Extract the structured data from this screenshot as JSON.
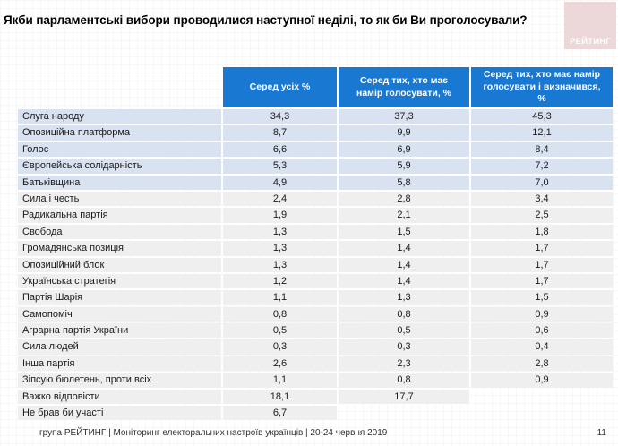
{
  "page": {
    "title": "Якби парламентські вибори проводилися наступної неділі, то як би Ви проголосували?",
    "logo_text": "РЕЙТИНГ",
    "footer": "група РЕЙТИНГ | Моніторинг електоральних настроїв українців | 20-24 червня 2019",
    "page_number": "11"
  },
  "colors": {
    "header_blue": "#1878d2",
    "row_blue": "#d8e2f1",
    "row_gray": "#efefef",
    "logo_pink": "#ecd8d8"
  },
  "chart_data": {
    "type": "table",
    "title": "Якби парламентські вибори проводилися наступної неділі, то як би Ви проголосували?",
    "columns": [
      "Серед усіх %",
      "Серед тих, хто має намір голосувати, %",
      "Серед тих, хто має намір голосувати і визначився, %"
    ],
    "rows": [
      {
        "label": "Слуга народу",
        "values": [
          "34,3",
          "37,3",
          "45,3"
        ],
        "highlight": true
      },
      {
        "label": "Опозиційна платформа",
        "values": [
          "8,7",
          "9,9",
          "12,1"
        ],
        "highlight": true
      },
      {
        "label": "Голос",
        "values": [
          "6,6",
          "6,9",
          "8,4"
        ],
        "highlight": true
      },
      {
        "label": "Європейська солідарність",
        "values": [
          "5,3",
          "5,9",
          "7,2"
        ],
        "highlight": true
      },
      {
        "label": "Батьківщина",
        "values": [
          "4,9",
          "5,8",
          "7,0"
        ],
        "highlight": true
      },
      {
        "label": "Сила і честь",
        "values": [
          "2,4",
          "2,8",
          "3,4"
        ],
        "highlight": false
      },
      {
        "label": "Радикальна партія",
        "values": [
          "1,9",
          "2,1",
          "2,5"
        ],
        "highlight": false
      },
      {
        "label": "Свобода",
        "values": [
          "1,3",
          "1,5",
          "1,8"
        ],
        "highlight": false
      },
      {
        "label": "Громадянська позиція",
        "values": [
          "1,3",
          "1,4",
          "1,7"
        ],
        "highlight": false
      },
      {
        "label": "Опозиційний блок",
        "values": [
          "1,3",
          "1,4",
          "1,7"
        ],
        "highlight": false
      },
      {
        "label": "Українська стратегія",
        "values": [
          "1,2",
          "1,4",
          "1,7"
        ],
        "highlight": false
      },
      {
        "label": "Партія Шарія",
        "values": [
          "1,1",
          "1,3",
          "1,5"
        ],
        "highlight": false
      },
      {
        "label": "Самопоміч",
        "values": [
          "0,8",
          "0,8",
          "0,9"
        ],
        "highlight": false
      },
      {
        "label": "Аграрна партія України",
        "values": [
          "0,5",
          "0,5",
          "0,6"
        ],
        "highlight": false
      },
      {
        "label": "Сила людей",
        "values": [
          "0,3",
          "0,3",
          "0,4"
        ],
        "highlight": false
      },
      {
        "label": "Інша партія",
        "values": [
          "2,6",
          "2,3",
          "2,8"
        ],
        "highlight": false
      },
      {
        "label": "Зіпсую бюлетень, проти всіх",
        "values": [
          "1,1",
          "0,8",
          "0,9"
        ],
        "highlight": false
      },
      {
        "label": "Важко відповісти",
        "values": [
          "18,1",
          "17,7",
          null
        ],
        "highlight": false
      },
      {
        "label": "Не брав би участі",
        "values": [
          "6,7",
          null,
          null
        ],
        "highlight": false
      }
    ]
  }
}
